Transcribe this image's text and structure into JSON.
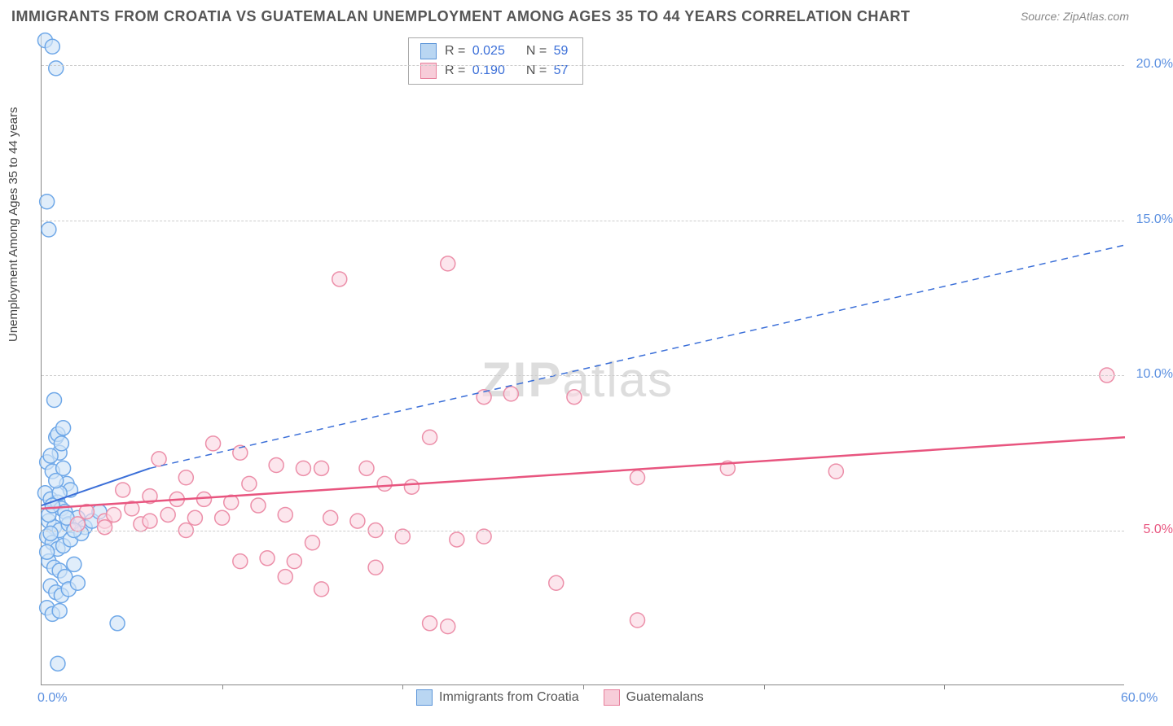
{
  "title": "IMMIGRANTS FROM CROATIA VS GUATEMALAN UNEMPLOYMENT AMONG AGES 35 TO 44 YEARS CORRELATION CHART",
  "source": "Source: ZipAtlas.com",
  "ylabel": "Unemployment Among Ages 35 to 44 years",
  "watermark": "ZIPatlas",
  "chart": {
    "type": "scatter",
    "xlim": [
      0,
      60
    ],
    "ylim": [
      0,
      21
    ],
    "xticks": [
      {
        "v": 0,
        "label": "0.0%"
      },
      {
        "v": 60,
        "label": "60.0%"
      }
    ],
    "xtick_marks": [
      10,
      20,
      30,
      40,
      50
    ],
    "yticks": [
      {
        "v": 5,
        "label": "5.0%"
      },
      {
        "v": 10,
        "label": "10.0%"
      },
      {
        "v": 15,
        "label": "15.0%"
      },
      {
        "v": 20,
        "label": "20.0%"
      }
    ],
    "grid_color": "#d5d5d5",
    "axis_color": "#888888",
    "background_color": "#ffffff",
    "marker_radius": 9,
    "marker_stroke_width": 1.5,
    "series": [
      {
        "name": "Immigrants from Croatia",
        "color_fill": "#cfe3f7",
        "color_stroke": "#6fa8e8",
        "swatch_fill": "#b9d6f2",
        "swatch_stroke": "#5a94d8",
        "r_value": "0.025",
        "n_value": "59",
        "regression": {
          "x1": 0,
          "y1": 5.8,
          "x2": 6,
          "y2": 7.0,
          "solid_end_x": 6,
          "dash_end_x": 60,
          "dash_end_y": 14.2,
          "stroke": "#3b6fd8",
          "width": 2
        },
        "points": [
          [
            0.2,
            20.8
          ],
          [
            0.6,
            20.6
          ],
          [
            0.8,
            19.9
          ],
          [
            0.3,
            15.6
          ],
          [
            0.4,
            14.7
          ],
          [
            0.7,
            9.2
          ],
          [
            0.8,
            8.0
          ],
          [
            0.9,
            8.1
          ],
          [
            1.0,
            7.5
          ],
          [
            1.1,
            7.8
          ],
          [
            0.3,
            7.2
          ],
          [
            0.6,
            6.9
          ],
          [
            1.2,
            7.0
          ],
          [
            1.4,
            6.5
          ],
          [
            1.6,
            6.3
          ],
          [
            0.2,
            6.2
          ],
          [
            0.5,
            6.0
          ],
          [
            0.9,
            5.9
          ],
          [
            1.1,
            5.7
          ],
          [
            1.3,
            5.6
          ],
          [
            0.4,
            5.3
          ],
          [
            0.7,
            5.1
          ],
          [
            1.0,
            5.0
          ],
          [
            1.5,
            5.2
          ],
          [
            2.0,
            5.4
          ],
          [
            2.4,
            5.1
          ],
          [
            0.3,
            4.8
          ],
          [
            0.6,
            4.6
          ],
          [
            0.9,
            4.4
          ],
          [
            1.2,
            4.5
          ],
          [
            1.6,
            4.7
          ],
          [
            2.2,
            4.9
          ],
          [
            2.8,
            5.3
          ],
          [
            3.2,
            5.6
          ],
          [
            0.4,
            4.0
          ],
          [
            0.7,
            3.8
          ],
          [
            1.0,
            3.7
          ],
          [
            1.3,
            3.5
          ],
          [
            1.8,
            3.9
          ],
          [
            0.5,
            3.2
          ],
          [
            0.8,
            3.0
          ],
          [
            1.1,
            2.9
          ],
          [
            1.5,
            3.1
          ],
          [
            2.0,
            3.3
          ],
          [
            0.3,
            2.5
          ],
          [
            0.6,
            2.3
          ],
          [
            1.0,
            2.4
          ],
          [
            4.2,
            2.0
          ],
          [
            0.9,
            0.7
          ],
          [
            0.4,
            5.5
          ],
          [
            0.6,
            5.8
          ],
          [
            1.0,
            6.2
          ],
          [
            1.4,
            5.4
          ],
          [
            0.5,
            7.4
          ],
          [
            0.8,
            6.6
          ],
          [
            1.2,
            8.3
          ],
          [
            0.3,
            4.3
          ],
          [
            0.5,
            4.9
          ],
          [
            1.8,
            5.0
          ]
        ]
      },
      {
        "name": "Guatemalans",
        "color_fill": "#fbd9e3",
        "color_stroke": "#ec8fa9",
        "swatch_fill": "#f7cdd9",
        "swatch_stroke": "#e77f9c",
        "r_value": "0.190",
        "n_value": "57",
        "regression": {
          "x1": 0,
          "y1": 5.7,
          "x2": 60,
          "y2": 8.0,
          "stroke": "#e8557f",
          "width": 2.5
        },
        "points": [
          [
            22.5,
            13.6
          ],
          [
            16.5,
            13.1
          ],
          [
            59.0,
            10.0
          ],
          [
            26.0,
            9.4
          ],
          [
            29.5,
            9.3
          ],
          [
            24.5,
            9.3
          ],
          [
            9.5,
            7.8
          ],
          [
            11.0,
            7.5
          ],
          [
            6.5,
            7.3
          ],
          [
            13.0,
            7.1
          ],
          [
            14.5,
            7.0
          ],
          [
            15.5,
            7.0
          ],
          [
            18.0,
            7.0
          ],
          [
            8.0,
            6.7
          ],
          [
            11.5,
            6.5
          ],
          [
            19.0,
            6.5
          ],
          [
            20.5,
            6.4
          ],
          [
            4.5,
            6.3
          ],
          [
            6.0,
            6.1
          ],
          [
            7.5,
            6.0
          ],
          [
            9.0,
            6.0
          ],
          [
            10.5,
            5.9
          ],
          [
            12.0,
            5.8
          ],
          [
            5.0,
            5.7
          ],
          [
            7.0,
            5.5
          ],
          [
            8.5,
            5.4
          ],
          [
            10.0,
            5.4
          ],
          [
            13.5,
            5.5
          ],
          [
            16.0,
            5.4
          ],
          [
            38.0,
            7.0
          ],
          [
            44.0,
            6.9
          ],
          [
            33.0,
            6.7
          ],
          [
            3.5,
            5.3
          ],
          [
            5.5,
            5.2
          ],
          [
            17.5,
            5.3
          ],
          [
            18.5,
            5.0
          ],
          [
            20.0,
            4.8
          ],
          [
            23.0,
            4.7
          ],
          [
            24.5,
            4.8
          ],
          [
            15.0,
            4.6
          ],
          [
            12.5,
            4.1
          ],
          [
            14.0,
            4.0
          ],
          [
            11.0,
            4.0
          ],
          [
            18.5,
            3.8
          ],
          [
            13.5,
            3.5
          ],
          [
            15.5,
            3.1
          ],
          [
            28.5,
            3.3
          ],
          [
            21.5,
            2.0
          ],
          [
            22.5,
            1.9
          ],
          [
            33.0,
            2.1
          ],
          [
            2.5,
            5.6
          ],
          [
            3.5,
            5.1
          ],
          [
            4.0,
            5.5
          ],
          [
            6.0,
            5.3
          ],
          [
            2.0,
            5.2
          ],
          [
            8.0,
            5.0
          ],
          [
            21.5,
            8.0
          ]
        ]
      }
    ]
  },
  "colors": {
    "title": "#555555",
    "source": "#888888",
    "ytick_blue": "#5a8fe0",
    "ytick_pink": "#e8557f",
    "xtick_blue": "#5a8fe0",
    "stat_value": "#3b6fd8"
  },
  "fonts": {
    "title_size": 18,
    "label_size": 15,
    "tick_size": 16,
    "legend_size": 16
  }
}
